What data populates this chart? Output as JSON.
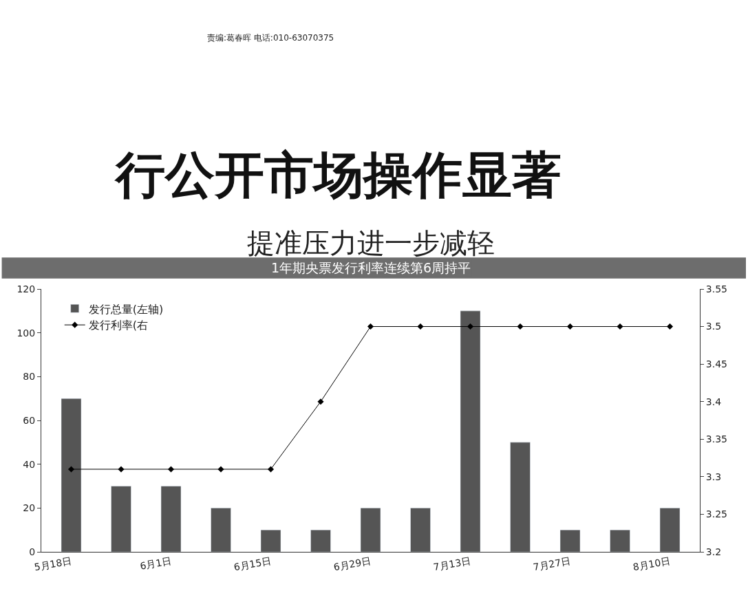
{
  "chart_data": {
    "type": "bar",
    "title": "1年期央票发行利率连续第6周持平",
    "subtitle": "提准压力进一步减轻",
    "annotations": [
      "责编:葛春晖 电话:010-63070375",
      "行公开市场操作显著"
    ],
    "categories": [
      "5月18日",
      null,
      "6月1日",
      null,
      "6月15日",
      null,
      "6月29日",
      null,
      "7月13日",
      null,
      "7月27日",
      null,
      "8月10日"
    ],
    "series": [
      {
        "name": "发行总量(左轴)",
        "color": "#555555",
        "values": [
          70,
          30,
          30,
          20,
          10,
          10,
          20,
          20,
          110,
          50,
          10,
          10,
          20
        ]
      },
      {
        "name": "发行利率(右",
        "type": "line",
        "axis": "y2",
        "color": "#000000",
        "marker": "diamond",
        "values": [
          3.31,
          3.31,
          3.31,
          3.31,
          3.31,
          3.4,
          3.5,
          3.5,
          3.5,
          3.5,
          3.5,
          3.5,
          3.5
        ]
      }
    ],
    "ylim": [
      0,
      120
    ],
    "yticks": [
      0,
      20,
      40,
      60,
      80,
      100,
      120
    ],
    "y2lim": [
      3.2,
      3.55
    ],
    "y2ticks": [
      3.2,
      3.25,
      3.3,
      3.35,
      3.4,
      3.45,
      3.5,
      3.55
    ],
    "legend": "top left"
  }
}
